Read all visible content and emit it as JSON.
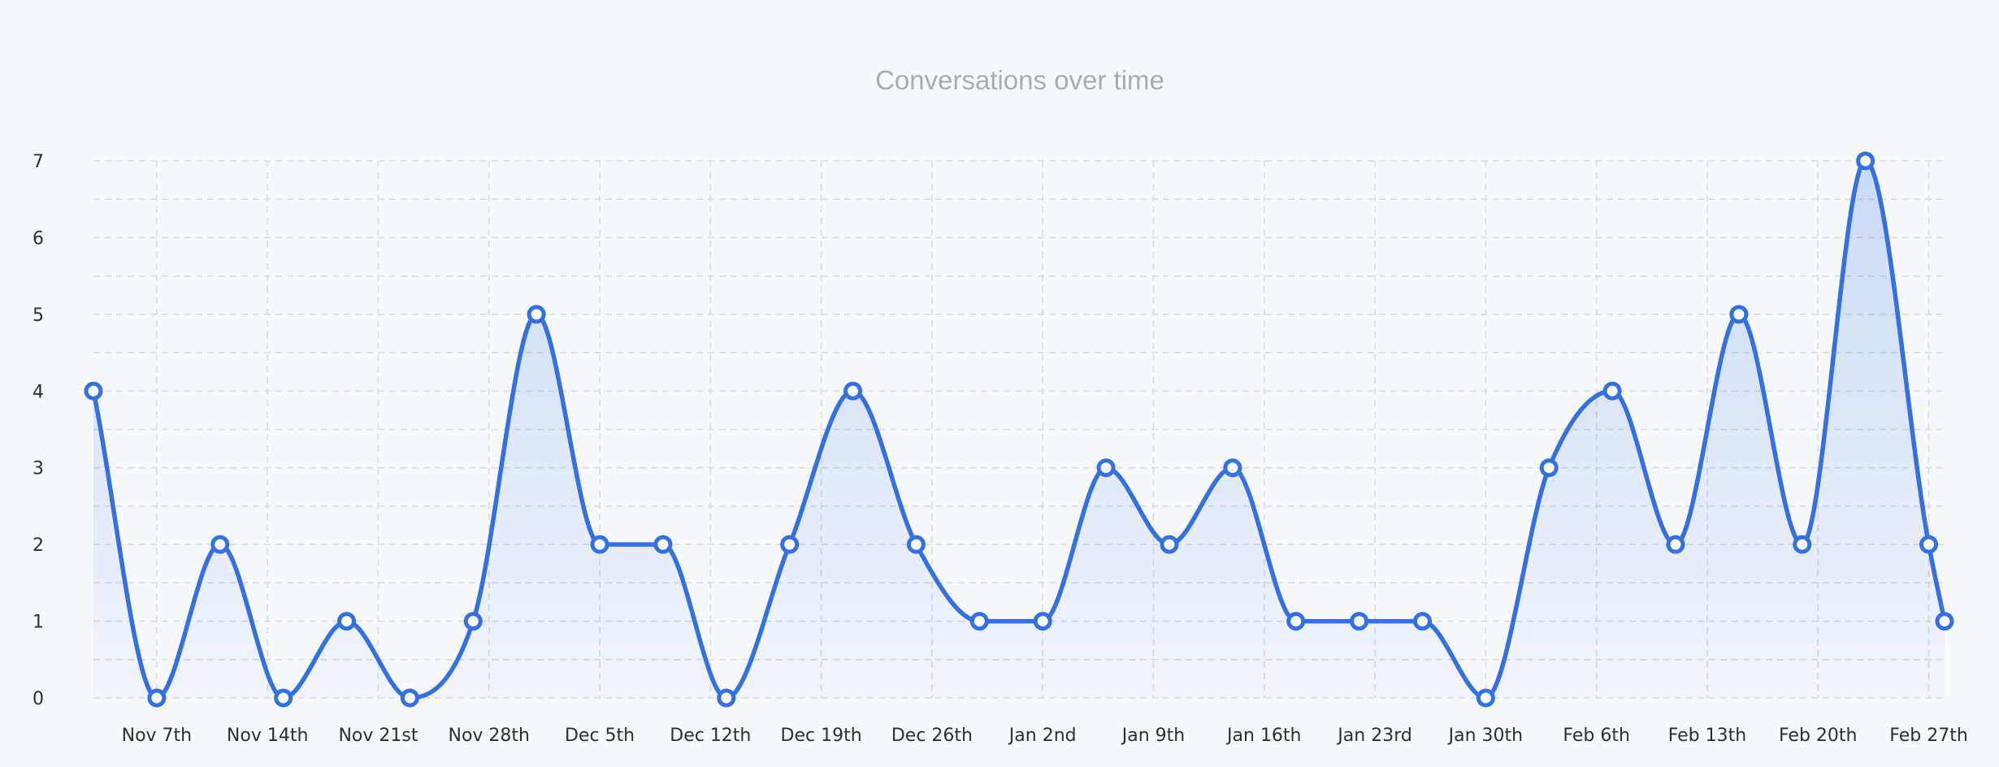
{
  "chart_data": {
    "type": "area",
    "title": "Conversations over time",
    "xlabel": "",
    "ylabel": "",
    "x_tick_labels": [
      "Nov 7th",
      "Nov 14th",
      "Nov 21st",
      "Nov 28th",
      "Dec 5th",
      "Dec 12th",
      "Dec 19th",
      "Dec 26th",
      "Jan 2nd",
      "Jan 9th",
      "Jan 16th",
      "Jan 23rd",
      "Jan 30th",
      "Feb 6th",
      "Feb 13th",
      "Feb 20th",
      "Feb 27th"
    ],
    "y_ticks": [
      0,
      1,
      2,
      3,
      4,
      5,
      6,
      7
    ],
    "ylim": [
      0,
      7
    ],
    "grid": true,
    "colors": {
      "line": "#3370e8",
      "fill": "#3370e8",
      "grid": "#d9dce1"
    },
    "series": [
      {
        "x": [
          "Nov 3",
          "Nov 7",
          "Nov 11",
          "Nov 15",
          "Nov 19",
          "Nov 23",
          "Nov 27",
          "Dec 1",
          "Dec 5",
          "Dec 9",
          "Dec 13",
          "Dec 17",
          "Dec 21",
          "Dec 25",
          "Dec 29",
          "Jan 2",
          "Jan 6",
          "Jan 10",
          "Jan 14",
          "Jan 18",
          "Jan 22",
          "Jan 26",
          "Jan 30",
          "Feb 3",
          "Feb 7",
          "Feb 11",
          "Feb 15",
          "Feb 19",
          "Feb 23",
          "Feb 27",
          "Feb 28"
        ],
        "values": [
          4,
          0,
          2,
          0,
          1,
          0,
          1,
          5,
          2,
          2,
          0,
          2,
          4,
          2,
          1,
          1,
          3,
          2,
          3,
          1,
          1,
          1,
          0,
          3,
          4,
          2,
          5,
          2,
          7,
          2,
          1
        ]
      }
    ]
  }
}
